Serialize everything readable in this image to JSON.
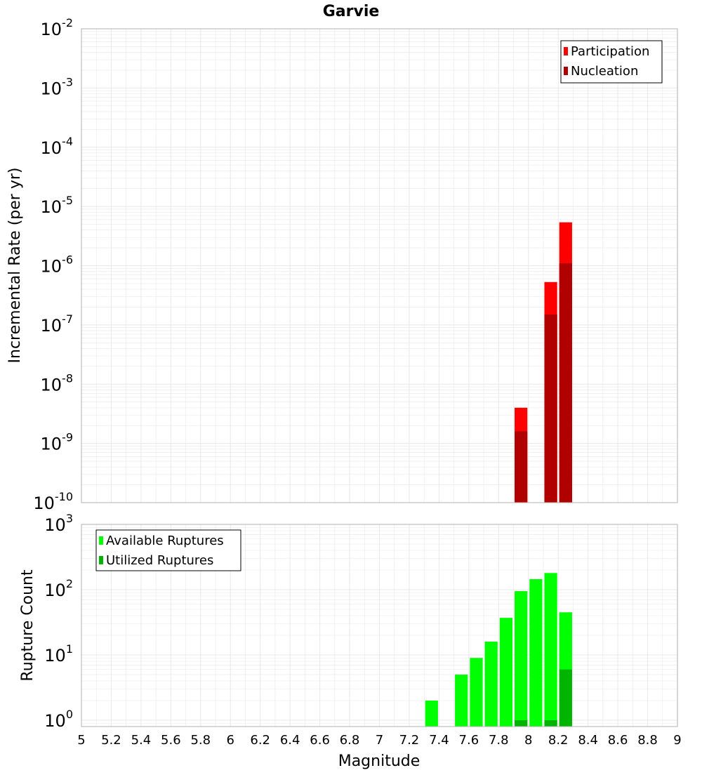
{
  "title": "Garvie",
  "xlabel": "Magnitude",
  "colors": {
    "participation": "#ff0000",
    "nucleation": "#b00000",
    "available": "#00ff00",
    "utilized": "#00b400",
    "grid": "#e8e8e8",
    "frame": "#b0b0b0"
  },
  "chart_data": [
    {
      "type": "bar",
      "title": "Garvie",
      "xlabel": "",
      "ylabel": "Incremental Rate (per yr)",
      "yscale": "log",
      "xlim": [
        5,
        9
      ],
      "ylim": [
        1e-10,
        0.01
      ],
      "bin_width": 0.1,
      "ytick_exponents": [
        -10,
        -9,
        -8,
        -7,
        -6,
        -5,
        -4,
        -3,
        -2
      ],
      "legend_position": "top-right",
      "series": [
        {
          "name": "Participation",
          "color": "#ff0000",
          "x": [
            7.95,
            8.15,
            8.25
          ],
          "values": [
            4e-09,
            5.3e-07,
            5.4e-06
          ]
        },
        {
          "name": "Nucleation",
          "color": "#b00000",
          "x": [
            7.95,
            8.15,
            8.25
          ],
          "values": [
            1.6e-09,
            1.5e-07,
            1.1e-06
          ]
        }
      ]
    },
    {
      "type": "bar",
      "title": "",
      "xlabel": "Magnitude",
      "ylabel": "Rupture Count",
      "yscale": "log",
      "xlim": [
        5,
        9
      ],
      "ylim": [
        0.8,
        1000
      ],
      "bin_width": 0.1,
      "ytick_exponents": [
        0,
        1,
        2,
        3
      ],
      "xticks": [
        "5",
        "5.2",
        "5.4",
        "5.6",
        "5.8",
        "6",
        "6.2",
        "6.4",
        "6.6",
        "6.8",
        "7",
        "7.2",
        "7.4",
        "7.6",
        "7.8",
        "8",
        "8.2",
        "8.4",
        "8.6",
        "8.8",
        "9"
      ],
      "legend_position": "top-left",
      "series": [
        {
          "name": "Available Ruptures",
          "color": "#00ff00",
          "x": [
            7.35,
            7.55,
            7.65,
            7.75,
            7.85,
            7.95,
            8.05,
            8.15,
            8.25
          ],
          "values": [
            2,
            5,
            9,
            16,
            37,
            95,
            145,
            180,
            45
          ]
        },
        {
          "name": "Utilized Ruptures",
          "color": "#00b400",
          "x": [
            7.95,
            8.15,
            8.25
          ],
          "values": [
            1,
            1,
            6
          ]
        }
      ]
    }
  ]
}
